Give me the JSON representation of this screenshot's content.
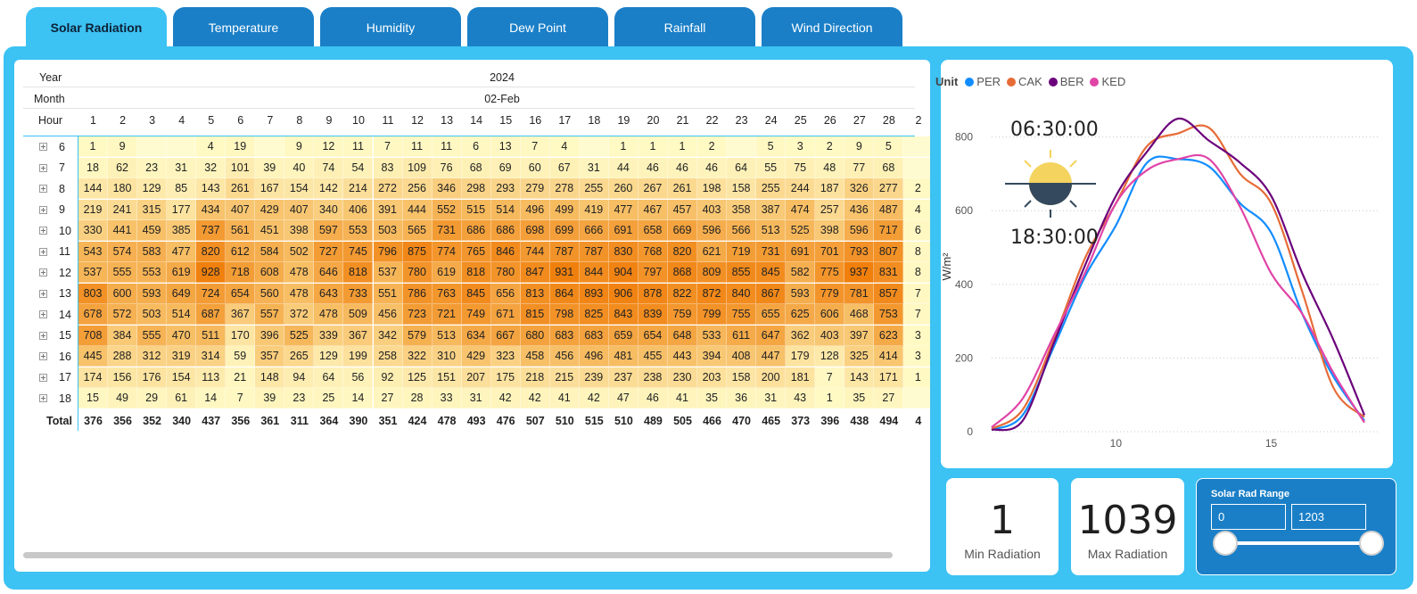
{
  "tabs": [
    "Solar Radiation",
    "Temperature",
    "Humidity",
    "Dew Point",
    "Rainfall",
    "Wind Direction"
  ],
  "active_tab": 0,
  "matrix": {
    "year_label": "Year",
    "year_value": "2024",
    "month_label": "Month",
    "month_value": "02-Feb",
    "hour_label": "Hour",
    "total_label": "Total",
    "columns": [
      "1",
      "2",
      "3",
      "4",
      "5",
      "6",
      "7",
      "8",
      "9",
      "10",
      "11",
      "12",
      "13",
      "14",
      "15",
      "16",
      "17",
      "18",
      "19",
      "20",
      "21",
      "22",
      "23",
      "24",
      "25",
      "26",
      "27",
      "28",
      "2"
    ],
    "rows": [
      {
        "hour": "6",
        "values": [
          "1",
          "9",
          "",
          "",
          "4",
          "19",
          "",
          "9",
          "12",
          "11",
          "7",
          "11",
          "11",
          "6",
          "13",
          "7",
          "4",
          "",
          "1",
          "1",
          "1",
          "2",
          "",
          "5",
          "3",
          "2",
          "9",
          "5",
          ""
        ]
      },
      {
        "hour": "7",
        "values": [
          "18",
          "62",
          "23",
          "31",
          "32",
          "101",
          "39",
          "40",
          "74",
          "54",
          "83",
          "109",
          "76",
          "68",
          "69",
          "60",
          "67",
          "31",
          "44",
          "46",
          "46",
          "46",
          "64",
          "55",
          "75",
          "48",
          "77",
          "68",
          ""
        ]
      },
      {
        "hour": "8",
        "values": [
          "144",
          "180",
          "129",
          "85",
          "143",
          "261",
          "167",
          "154",
          "142",
          "214",
          "272",
          "256",
          "346",
          "298",
          "293",
          "279",
          "278",
          "255",
          "260",
          "267",
          "261",
          "198",
          "158",
          "255",
          "244",
          "187",
          "326",
          "277",
          "2"
        ]
      },
      {
        "hour": "9",
        "values": [
          "219",
          "241",
          "315",
          "177",
          "434",
          "407",
          "429",
          "407",
          "340",
          "406",
          "391",
          "444",
          "552",
          "515",
          "514",
          "496",
          "499",
          "419",
          "477",
          "467",
          "457",
          "403",
          "358",
          "387",
          "474",
          "257",
          "436",
          "487",
          "4"
        ]
      },
      {
        "hour": "10",
        "values": [
          "330",
          "441",
          "459",
          "385",
          "737",
          "561",
          "451",
          "398",
          "597",
          "553",
          "503",
          "565",
          "731",
          "686",
          "686",
          "698",
          "699",
          "666",
          "691",
          "658",
          "669",
          "596",
          "566",
          "513",
          "525",
          "398",
          "596",
          "717",
          "6"
        ]
      },
      {
        "hour": "11",
        "values": [
          "543",
          "574",
          "583",
          "477",
          "820",
          "612",
          "584",
          "502",
          "727",
          "745",
          "796",
          "875",
          "774",
          "765",
          "846",
          "744",
          "787",
          "787",
          "830",
          "768",
          "820",
          "621",
          "719",
          "731",
          "691",
          "701",
          "793",
          "807",
          "8"
        ]
      },
      {
        "hour": "12",
        "values": [
          "537",
          "555",
          "553",
          "619",
          "928",
          "718",
          "608",
          "478",
          "646",
          "818",
          "537",
          "780",
          "619",
          "818",
          "780",
          "847",
          "931",
          "844",
          "904",
          "797",
          "868",
          "809",
          "855",
          "845",
          "582",
          "775",
          "937",
          "831",
          "8"
        ]
      },
      {
        "hour": "13",
        "values": [
          "803",
          "600",
          "593",
          "649",
          "724",
          "654",
          "560",
          "478",
          "643",
          "733",
          "551",
          "786",
          "763",
          "845",
          "656",
          "813",
          "864",
          "893",
          "906",
          "878",
          "822",
          "872",
          "840",
          "867",
          "593",
          "779",
          "781",
          "857",
          "7"
        ]
      },
      {
        "hour": "14",
        "values": [
          "678",
          "572",
          "503",
          "514",
          "687",
          "367",
          "557",
          "372",
          "478",
          "509",
          "456",
          "723",
          "721",
          "749",
          "671",
          "815",
          "798",
          "825",
          "843",
          "839",
          "759",
          "799",
          "755",
          "655",
          "625",
          "606",
          "468",
          "753",
          "7"
        ]
      },
      {
        "hour": "15",
        "values": [
          "708",
          "384",
          "555",
          "470",
          "511",
          "170",
          "396",
          "525",
          "339",
          "367",
          "342",
          "579",
          "513",
          "634",
          "667",
          "680",
          "683",
          "683",
          "659",
          "654",
          "648",
          "533",
          "611",
          "647",
          "362",
          "403",
          "397",
          "623",
          "3"
        ]
      },
      {
        "hour": "16",
        "values": [
          "445",
          "288",
          "312",
          "319",
          "314",
          "59",
          "357",
          "265",
          "129",
          "199",
          "258",
          "322",
          "310",
          "429",
          "323",
          "458",
          "456",
          "496",
          "481",
          "455",
          "443",
          "394",
          "408",
          "447",
          "179",
          "128",
          "325",
          "414",
          "3"
        ]
      },
      {
        "hour": "17",
        "values": [
          "174",
          "156",
          "176",
          "154",
          "113",
          "21",
          "148",
          "94",
          "64",
          "56",
          "92",
          "125",
          "151",
          "207",
          "175",
          "218",
          "215",
          "239",
          "237",
          "238",
          "230",
          "203",
          "158",
          "200",
          "181",
          "7",
          "143",
          "171",
          "1"
        ]
      },
      {
        "hour": "18",
        "values": [
          "15",
          "49",
          "29",
          "61",
          "14",
          "7",
          "39",
          "23",
          "25",
          "14",
          "27",
          "28",
          "33",
          "31",
          "42",
          "42",
          "41",
          "42",
          "47",
          "46",
          "41",
          "35",
          "36",
          "31",
          "43",
          "1",
          "35",
          "27",
          ""
        ]
      }
    ],
    "totals": [
      "376",
      "356",
      "352",
      "340",
      "437",
      "356",
      "361",
      "311",
      "364",
      "390",
      "351",
      "424",
      "478",
      "493",
      "476",
      "507",
      "510",
      "515",
      "510",
      "489",
      "505",
      "466",
      "470",
      "465",
      "373",
      "396",
      "438",
      "494",
      "4"
    ]
  },
  "sun": {
    "sunrise": "06:30:00",
    "sunset": "18:30:00"
  },
  "chart_data": {
    "type": "line",
    "legend_title": "Unit",
    "ylabel": "W/m²",
    "xlabel": "",
    "ylim": [
      0,
      850
    ],
    "xlim": [
      6,
      18
    ],
    "y_ticks": [
      0,
      200,
      400,
      600,
      800
    ],
    "x_ticks": [
      10,
      15
    ],
    "grid": "horizontal dotted",
    "legend_position": "top-left",
    "series": [
      {
        "name": "PER",
        "color": "#118dff",
        "x": [
          6,
          7,
          8,
          9,
          10,
          11,
          12,
          13,
          14,
          15,
          16,
          17,
          18
        ],
        "y": [
          5,
          45,
          230,
          420,
          560,
          730,
          740,
          720,
          620,
          540,
          320,
          150,
          30
        ]
      },
      {
        "name": "CAK",
        "color": "#e66c37",
        "x": [
          6,
          7,
          8,
          9,
          10,
          11,
          12,
          13,
          14,
          15,
          16,
          17,
          18
        ],
        "y": [
          8,
          60,
          250,
          470,
          620,
          775,
          810,
          825,
          700,
          620,
          380,
          120,
          40
        ]
      },
      {
        "name": "BER",
        "color": "#6b007b",
        "x": [
          6,
          7,
          8,
          9,
          10,
          11,
          12,
          13,
          14,
          15,
          16,
          17,
          18
        ],
        "y": [
          5,
          30,
          240,
          450,
          640,
          760,
          850,
          790,
          730,
          640,
          430,
          250,
          45
        ]
      },
      {
        "name": "KED",
        "color": "#e044a7",
        "x": [
          6,
          7,
          8,
          9,
          10,
          11,
          12,
          13,
          14,
          15,
          16,
          17,
          18
        ],
        "y": [
          12,
          90,
          260,
          430,
          620,
          710,
          740,
          740,
          610,
          430,
          320,
          160,
          25
        ]
      }
    ]
  },
  "cards": {
    "min": {
      "value": "1",
      "label": "Min Radiation"
    },
    "max": {
      "value": "1039",
      "label": "Max Radiation"
    }
  },
  "range": {
    "title": "Solar Rad Range",
    "min": "0",
    "max": "1203",
    "min_fraction": 0,
    "max_fraction": 1
  },
  "colors": {
    "frame": "#3cc2f3",
    "tab": "#1a7fc7",
    "heat_low": "#fff9c4",
    "heat_high": "#f07d0a"
  }
}
